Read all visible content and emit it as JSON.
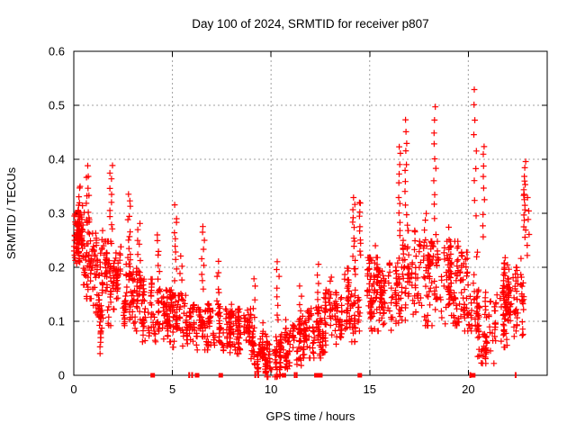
{
  "colors": {
    "marker": "#ff0000",
    "grid": "#a0a0a0",
    "axis": "#000000",
    "background": "#ffffff"
  },
  "chart_data": {
    "type": "scatter",
    "title": "Day 100 of 2024, SRMTID for receiver p807",
    "xlabel": "GPS time / hours",
    "ylabel": "SRMTID / TECUs",
    "xlim": [
      0,
      24
    ],
    "ylim": [
      0,
      0.6
    ],
    "xticks": [
      0,
      5,
      10,
      15,
      20
    ],
    "xtick_labels": [
      "0",
      "5",
      "10",
      "15",
      "20"
    ],
    "yticks": [
      0,
      0.1,
      0.2,
      0.3,
      0.4,
      0.5,
      0.6
    ],
    "ytick_labels": [
      "0",
      "0.1",
      "0.2",
      "0.3",
      "0.4",
      "0.5",
      "0.6"
    ],
    "grid": true,
    "legend": "none",
    "marker_style": "plus",
    "marker_color": "#ff0000",
    "seed": 11,
    "distribution": {
      "comment_bands": "each band = [t_start_h, t_end_h, y_low_TECU, y_high_TECU, n_points]",
      "bands": [
        [
          0.0,
          0.5,
          0.18,
          0.31,
          55
        ],
        [
          0.0,
          0.5,
          0.21,
          0.27,
          30
        ],
        [
          0.5,
          1.0,
          0.15,
          0.28,
          55
        ],
        [
          1.0,
          1.5,
          0.12,
          0.26,
          50
        ],
        [
          1.5,
          2.0,
          0.1,
          0.24,
          50
        ],
        [
          1.2,
          1.8,
          0.04,
          0.12,
          18
        ],
        [
          2.0,
          2.5,
          0.13,
          0.23,
          45
        ],
        [
          2.5,
          3.0,
          0.1,
          0.21,
          45
        ],
        [
          3.0,
          3.5,
          0.09,
          0.19,
          45
        ],
        [
          3.5,
          4.0,
          0.07,
          0.17,
          45
        ],
        [
          4.0,
          5.0,
          0.07,
          0.15,
          85
        ],
        [
          5.0,
          6.0,
          0.06,
          0.14,
          80
        ],
        [
          6.0,
          7.0,
          0.055,
          0.13,
          80
        ],
        [
          7.0,
          8.0,
          0.05,
          0.125,
          85
        ],
        [
          8.0,
          9.0,
          0.045,
          0.115,
          80
        ],
        [
          9.0,
          9.6,
          0.015,
          0.09,
          55
        ],
        [
          9.6,
          10.6,
          0.005,
          0.07,
          95
        ],
        [
          10.6,
          11.5,
          0.02,
          0.1,
          75
        ],
        [
          11.5,
          12.5,
          0.04,
          0.12,
          80
        ],
        [
          12.5,
          13.5,
          0.05,
          0.15,
          85
        ],
        [
          13.5,
          14.5,
          0.07,
          0.19,
          80
        ],
        [
          14.5,
          15.5,
          0.09,
          0.21,
          80
        ],
        [
          15.5,
          16.5,
          0.09,
          0.2,
          75
        ],
        [
          16.5,
          17.5,
          0.11,
          0.26,
          75
        ],
        [
          17.5,
          18.5,
          0.1,
          0.24,
          75
        ],
        [
          18.5,
          19.5,
          0.1,
          0.24,
          80
        ],
        [
          19.5,
          20.5,
          0.09,
          0.22,
          80
        ],
        [
          20.5,
          21.3,
          0.03,
          0.15,
          60
        ],
        [
          21.3,
          22.3,
          0.06,
          0.2,
          75
        ],
        [
          21.6,
          22.6,
          0.1,
          0.22,
          30
        ],
        [
          22.3,
          22.8,
          0.08,
          0.22,
          40
        ]
      ],
      "comment_streaks": "vertical satellite-arc streaks = [t_center_h, y_low, y_high, n_points]",
      "streaks": [
        [
          0.3,
          0.27,
          0.355,
          8
        ],
        [
          0.7,
          0.28,
          0.385,
          10
        ],
        [
          1.9,
          0.27,
          0.385,
          10
        ],
        [
          2.8,
          0.22,
          0.335,
          10
        ],
        [
          3.3,
          0.18,
          0.28,
          8
        ],
        [
          4.3,
          0.16,
          0.26,
          8
        ],
        [
          5.15,
          0.18,
          0.31,
          10
        ],
        [
          5.45,
          0.14,
          0.22,
          6
        ],
        [
          6.55,
          0.16,
          0.28,
          9
        ],
        [
          7.3,
          0.12,
          0.21,
          7
        ],
        [
          9.15,
          0.09,
          0.18,
          6
        ],
        [
          10.35,
          0.1,
          0.215,
          8
        ],
        [
          11.5,
          0.09,
          0.16,
          6
        ],
        [
          12.35,
          0.1,
          0.2,
          8
        ],
        [
          13.0,
          0.12,
          0.185,
          6
        ],
        [
          14.2,
          0.2,
          0.33,
          12
        ],
        [
          14.5,
          0.22,
          0.325,
          10
        ],
        [
          15.3,
          0.14,
          0.24,
          7
        ],
        [
          16.5,
          0.26,
          0.425,
          10
        ],
        [
          16.85,
          0.28,
          0.47,
          11
        ],
        [
          17.8,
          0.18,
          0.3,
          8
        ],
        [
          18.3,
          0.24,
          0.5,
          12
        ],
        [
          19.0,
          0.16,
          0.27,
          7
        ],
        [
          20.35,
          0.3,
          0.53,
          9
        ],
        [
          20.8,
          0.26,
          0.425,
          9
        ],
        [
          22.85,
          0.26,
          0.39,
          16
        ],
        [
          23.05,
          0.22,
          0.33,
          6
        ]
      ],
      "comment_zero_markers": "red marks sitting on the y=0 axis line; style: square or tick",
      "zero_markers": [
        {
          "t": 4.0,
          "style": "square"
        },
        {
          "t": 5.85,
          "style": "tick"
        },
        {
          "t": 6.0,
          "style": "tick"
        },
        {
          "t": 6.25,
          "style": "square"
        },
        {
          "t": 7.45,
          "style": "square"
        },
        {
          "t": 9.2,
          "style": "tick"
        },
        {
          "t": 9.35,
          "style": "tick"
        },
        {
          "t": 10.65,
          "style": "square"
        },
        {
          "t": 11.2,
          "style": "tick"
        },
        {
          "t": 11.3,
          "style": "tick"
        },
        {
          "t": 12.3,
          "style": "square"
        },
        {
          "t": 12.5,
          "style": "square"
        },
        {
          "t": 14.5,
          "style": "square"
        },
        {
          "t": 20.1,
          "style": "tick"
        },
        {
          "t": 20.25,
          "style": "square"
        },
        {
          "t": 22.4,
          "style": "tick"
        }
      ]
    }
  }
}
